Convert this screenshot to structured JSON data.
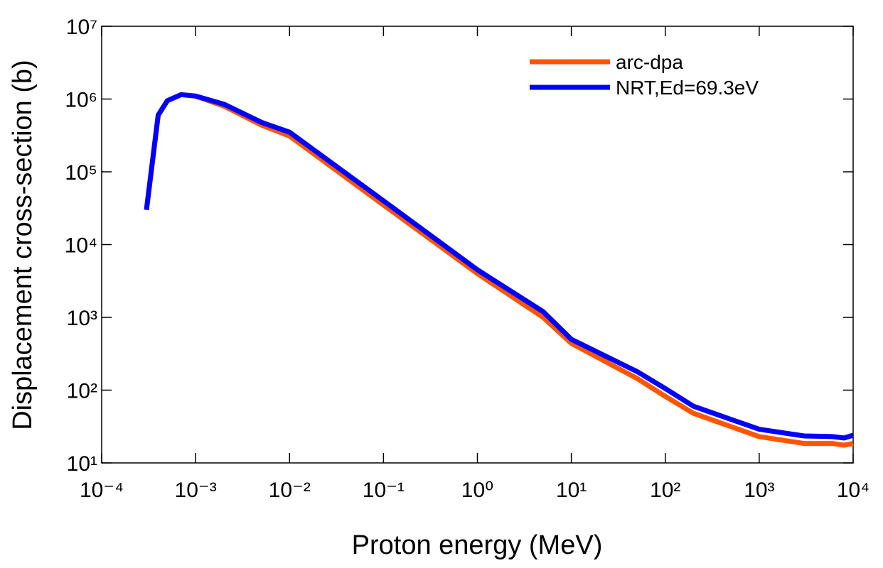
{
  "chart_data": {
    "type": "line",
    "xlabel": "Proton energy (MeV)",
    "ylabel": "Displacement cross-section (b)",
    "xscale": "log",
    "yscale": "log",
    "xlim": [
      0.0001,
      10000
    ],
    "ylim": [
      10,
      10000000
    ],
    "xticks": [
      {
        "value": 0.0001,
        "label": "10⁻⁴"
      },
      {
        "value": 0.001,
        "label": "10⁻³"
      },
      {
        "value": 0.01,
        "label": "10⁻²"
      },
      {
        "value": 0.1,
        "label": "10⁻¹"
      },
      {
        "value": 1,
        "label": "10⁰"
      },
      {
        "value": 10,
        "label": "10¹"
      },
      {
        "value": 100,
        "label": "10²"
      },
      {
        "value": 1000,
        "label": "10³"
      },
      {
        "value": 10000,
        "label": "10⁴"
      }
    ],
    "yticks": [
      {
        "value": 10,
        "label": "10¹"
      },
      {
        "value": 100,
        "label": "10²"
      },
      {
        "value": 1000,
        "label": "10³"
      },
      {
        "value": 10000,
        "label": "10⁴"
      },
      {
        "value": 100000,
        "label": "10⁵"
      },
      {
        "value": 1000000,
        "label": "10⁶"
      },
      {
        "value": 10000000,
        "label": "10⁷"
      }
    ],
    "legend": "upper right",
    "x": [
      0.0003,
      0.0004,
      0.0005,
      0.0007,
      0.001,
      0.002,
      0.005,
      0.01,
      0.1,
      1,
      5,
      10,
      50,
      100,
      200,
      1000,
      3000,
      6000,
      8000,
      10000
    ],
    "series": [
      {
        "name": "arc-dpa",
        "color": "#ff5500",
        "values": [
          30000,
          600000,
          950000,
          1150000,
          1100000,
          800000,
          440000,
          310000,
          35000,
          4000,
          1000,
          440,
          145,
          82,
          48,
          23,
          18.5,
          18.5,
          17.5,
          18.5
        ]
      },
      {
        "name": "NRT,Ed=69.3eV",
        "color": "#0000ff",
        "values": [
          30000,
          600000,
          950000,
          1150000,
          1100000,
          850000,
          480000,
          350000,
          40000,
          4500,
          1200,
          500,
          180,
          105,
          60,
          29,
          23.5,
          23,
          22,
          24
        ]
      }
    ]
  }
}
